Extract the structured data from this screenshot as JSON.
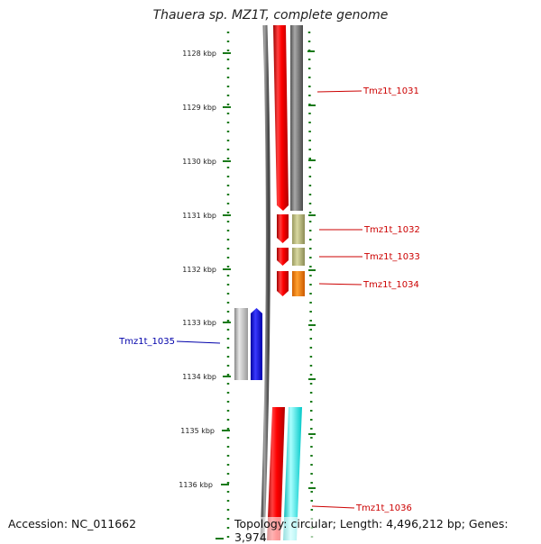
{
  "title": "Thauera sp. MZ1T, complete genome",
  "accession": "Accession: NC_011662",
  "topology": "Topology: circular; Length: 4,496,212 bp; Genes: 3,974",
  "ticks": [
    "1128 kbp",
    "1129 kbp",
    "1130 kbp",
    "1131 kbp",
    "1132 kbp",
    "1133 kbp",
    "1134 kbp",
    "1135 kbp",
    "1136 kbp"
  ],
  "genes": [
    {
      "label": "Tmz1t_1031",
      "color": "#cc0000"
    },
    {
      "label": "Tmz1t_1032",
      "color": "#cc0000"
    },
    {
      "label": "Tmz1t_1033",
      "color": "#cc0000"
    },
    {
      "label": "Tmz1t_1034",
      "color": "#cc0000"
    },
    {
      "label": "Tmz1t_1035",
      "color": "#0000aa"
    },
    {
      "label": "Tmz1t_1036",
      "color": "#cc0000"
    }
  ]
}
